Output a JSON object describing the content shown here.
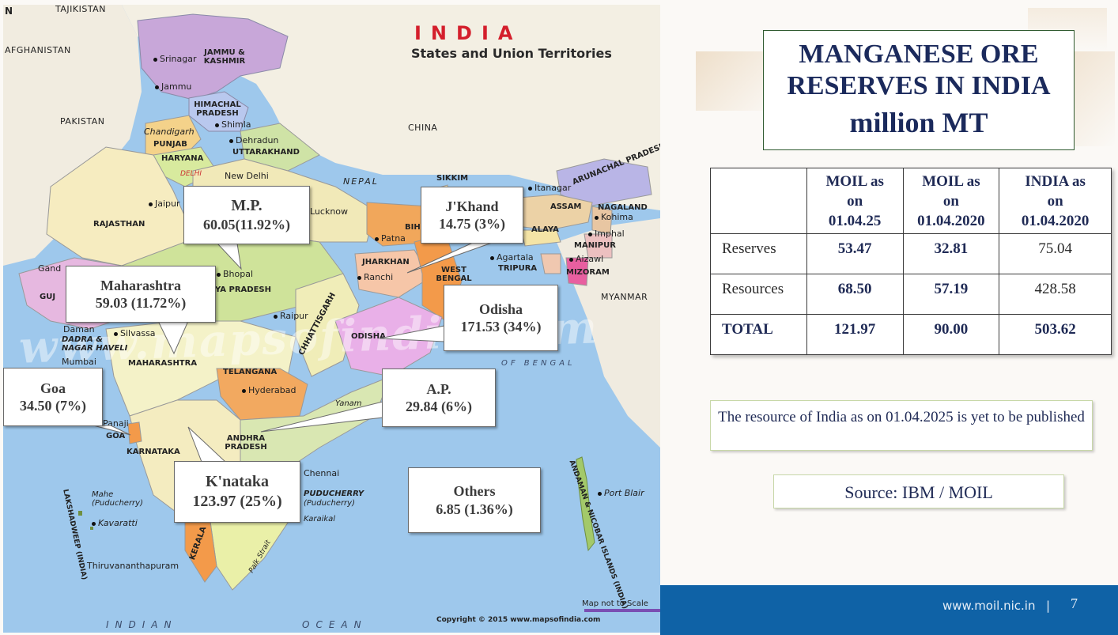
{
  "map": {
    "title": "INDIA",
    "subtitle": "States and Union Territories",
    "north_mark": "N",
    "watermark": "www.mapsofindia.com",
    "copyright": "Copyright © 2015 www.mapsofindia.com",
    "scale_note": "Map not to Scale",
    "labels": {
      "tajikistan": "TAJIKISTAN",
      "afghanistan": "AFGHANISTAN",
      "pakistan": "PAKISTAN",
      "china": "CHINA",
      "nepal": "NEPAL",
      "sikkim": "SIKKIM",
      "myanmar": "MYANMAR",
      "arunachal": "ARUNACHAL PRADESH",
      "srinagar": "Srinagar",
      "jammu_kashmir": "JAMMU & KASHMIR",
      "jammu": "Jammu",
      "himachal": "HIMACHAL PRADESH",
      "shimla": "Shimla",
      "chandigarh": "Chandigarh",
      "punjab": "PUNJAB",
      "dehradun": "Dehradun",
      "uttarakhand": "UTTARAKHAND",
      "haryana": "HARYANA",
      "delhi": "DELHI",
      "new_delhi": "New Delhi",
      "jaipur": "Jaipur",
      "rajasthan": "RAJASTHAN",
      "lucknow": "Lucknow",
      "patna": "Patna",
      "bihar": "BIH",
      "itanagar": "Itanagar",
      "assam": "ASSAM",
      "nagaland": "NAGALAND",
      "kohima": "Kohima",
      "imphal": "Imphal",
      "manipur": "MANIPUR",
      "meghalaya": "ALAYA",
      "agartala": "Agartala",
      "tripura": "TRIPURA",
      "aizawl": "Aizawl",
      "mizoram": "MIZORAM",
      "jharkhand": "JHARKHAN",
      "ranchi": "Ranchi",
      "west_bengal": "WEST BENGAL",
      "gandhinagar": "Gand",
      "gujarat": "GUJ",
      "bhopal": "Bhopal",
      "madhya_pradesh": "YA PRADESH",
      "raipur": "Raipur",
      "chhattisgarh": "CHHATTISGARH",
      "odisha": "ODISHA",
      "daman": "Daman",
      "dadra": "DADRA & NAGAR HAVELI",
      "silvassa": "Silvassa",
      "mumbai": "Mumbai",
      "maharashtra": "MAHARASHTRA",
      "telangana": "TELANGANA",
      "hyderabad": "Hyderabad",
      "bay_of_bengal": "OF BENGAL",
      "panaji": "Panaji",
      "goa": "GOA",
      "karnataka": "KARNATAKA",
      "andhra": "ANDHRA PRADESH",
      "yanam": "Yanam",
      "chennai": "Chennai",
      "puducherry": "PUDUCHERRY",
      "puducherry_city": "(Puducherry)",
      "karaikal": "Karaikal",
      "mahe": "Mahe (Puducherry)",
      "kavaratti": "Kavaratti",
      "lakshadweep": "LAKSHADWEEP (INDIA)",
      "kerala": "KERALA",
      "thiruvananthapuram": "Thiruvananthapuram",
      "palk_strait": "Palk Strait",
      "port_blair": "Port Blair",
      "andaman": "ANDAMAN & NICOBAR ISLANDS (INDIA)",
      "indian_ocean_1": "INDIAN",
      "indian_ocean_2": "OCEAN"
    },
    "callouts": [
      {
        "name": "M.P.",
        "value": "60.05(11.92%)"
      },
      {
        "name": "J'Khand",
        "value": "14.75 (3%)"
      },
      {
        "name": "Maharashtra",
        "value": "59.03 (11.72%)"
      },
      {
        "name": "Odisha",
        "value": "171.53 (34%)"
      },
      {
        "name": "Goa",
        "value": "34.50 (7%)"
      },
      {
        "name": "A.P.",
        "value": "29.84 (6%)"
      },
      {
        "name": "K'nataka",
        "value": "123.97 (25%)"
      },
      {
        "name": "Others",
        "value": "6.85 (1.36%)"
      }
    ]
  },
  "slide": {
    "title_line1": "MANGANESE ORE",
    "title_line2": "RESERVES IN INDIA",
    "title_line3": "million MT"
  },
  "table": {
    "headers": [
      {
        "l1": "MOIL as",
        "l2": "on",
        "l3": "01.04.25"
      },
      {
        "l1": "MOIL as",
        "l2": "on",
        "l3": "01.04.2020"
      },
      {
        "l1": "INDIA as",
        "l2": "on",
        "l3": "01.04.2020"
      }
    ],
    "rows": [
      {
        "label": "Reserves",
        "moil_2025": "53.47",
        "moil_2020": "32.81",
        "india_2020": "75.04"
      },
      {
        "label": "Resources",
        "moil_2025": "68.50",
        "moil_2020": "57.19",
        "india_2020": "428.58"
      },
      {
        "label": "TOTAL",
        "moil_2025": "121.97",
        "moil_2020": "90.00",
        "india_2020": "503.62"
      }
    ]
  },
  "note": "The resource of India as on 01.04.2025 is yet to be published",
  "source": "Source: IBM / MOIL",
  "footer": {
    "url": "www.moil.nic.in",
    "separator": "|",
    "page": "7"
  },
  "colors": {
    "accent_blue": "#0f62a6",
    "title_navy": "#1b2a5c",
    "map_title_red": "#d41f2c",
    "sea": "#9ec8ec"
  }
}
